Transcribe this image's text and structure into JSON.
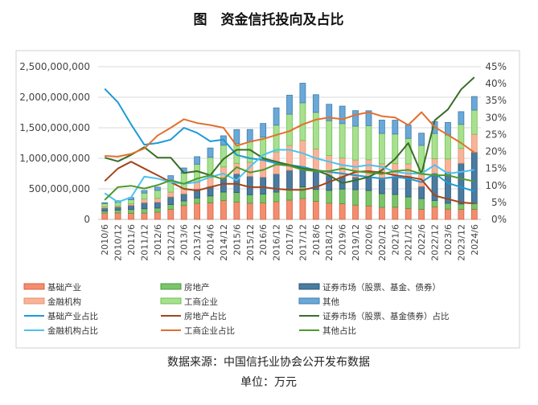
{
  "chart_data": {
    "type": "bar+line",
    "title": "图　资金信托投向及占比",
    "source": "数据来源：中国信托业协会公开发布数据",
    "unit": "单位：万元",
    "categories": [
      "2010/6",
      "2010/12",
      "2011/6",
      "2011/12",
      "2012/6",
      "2012/12",
      "2013/6",
      "2013/12",
      "2014/6",
      "2014/12",
      "2015/6",
      "2015/12",
      "2016/6",
      "2016/12",
      "2017/6",
      "2017/12",
      "2018/6",
      "2018/12",
      "2019/6",
      "2019/12",
      "2020/6",
      "2020/12",
      "2021/6",
      "2021/12",
      "2022/6",
      "2022/12",
      "2023/6",
      "2023/12",
      "2024/6"
    ],
    "left_axis": {
      "ylim": [
        0,
        2500000000
      ],
      "ticks": [
        "0",
        "500,000,000",
        "1,000,000,000",
        "1,500,000,000",
        "2,000,000,000",
        "2,500,000,000"
      ],
      "tick_values": [
        0,
        500000000,
        1000000000,
        1500000000,
        2000000000,
        2500000000
      ]
    },
    "right_axis": {
      "ylim": [
        0,
        45
      ],
      "ticks": [
        "0%",
        "5%",
        "10%",
        "15%",
        "20%",
        "25%",
        "30%",
        "35%",
        "40%",
        "45%"
      ],
      "tick_values": [
        0,
        5,
        10,
        15,
        20,
        25,
        30,
        35,
        40,
        45
      ]
    },
    "grid": true,
    "legend_position": "bottom",
    "bar_series": [
      {
        "name": "基础产业",
        "color": "#F28E6F",
        "border": "#D9603C",
        "values": [
          105000000.0,
          106000000.0,
          101000000.0,
          103000000.0,
          118000000.0,
          165000000.0,
          227000000.0,
          263000000.0,
          272000000.0,
          309000000.0,
          283000000.0,
          264000000.0,
          269000000.0,
          289000000.0,
          316000000.0,
          341000000.0,
          296000000.0,
          266000000.0,
          258000000.0,
          234000000.0,
          221000000.0,
          196000000.0,
          200000000.0,
          180000000.0,
          164000000.0,
          204000000.0,
          169000000.0,
          165000000.0,
          166000000.0
        ]
      },
      {
        "name": "房地产",
        "color": "#7CC46A",
        "border": "#4E9A3C",
        "values": [
          31000000.0,
          46000000.0,
          61000000.0,
          71000000.0,
          68000000.0,
          77000000.0,
          76000000.0,
          88000000.0,
          112000000.0,
          138000000.0,
          157000000.0,
          140000000.0,
          146000000.0,
          158000000.0,
          172000000.0,
          192000000.0,
          194000000.0,
          209000000.0,
          239000000.0,
          252000000.0,
          251000000.0,
          225000000.0,
          208000000.0,
          188000000.0,
          176000000.0,
          106000000.0,
          95000000.0,
          87000000.0,
          94000000.0
        ]
      },
      {
        "name": "证券市场（股票、基金、债券）",
        "color": "#4A7BA0",
        "border": "#2D5575",
        "values": [
          50000000.0,
          52000000.0,
          68000000.0,
          100000000.0,
          96000000.0,
          127000000.0,
          115000000.0,
          146000000.0,
          154000000.0,
          234000000.0,
          306000000.0,
          301000000.0,
          276000000.0,
          298000000.0,
          316000000.0,
          330000000.0,
          296000000.0,
          247000000.0,
          204000000.0,
          207000000.0,
          221000000.0,
          237000000.0,
          285000000.0,
          338000000.0,
          200000000.0,
          442000000.0,
          512000000.0,
          667000000.0,
          840000000.0
        ]
      },
      {
        "name": "金融机构",
        "color": "#F7B49A",
        "border": "#E8906E",
        "values": [
          21000000.0,
          16000000.0,
          23000000.0,
          59000000.0,
          63000000.0,
          77000000.0,
          88000000.0,
          113000000.0,
          148000000.0,
          178000000.0,
          171000000.0,
          228000000.0,
          292000000.0,
          360000000.0,
          405000000.0,
          429000000.0,
          367000000.0,
          323000000.0,
          305000000.0,
          279000000.0,
          283000000.0,
          253000000.0,
          224000000.0,
          203000000.0,
          201000000.0,
          242000000.0,
          213000000.0,
          244000000.0,
          293000000.0
        ]
      },
      {
        "name": "工商企业",
        "color": "#A8E090",
        "border": "#6CC04E",
        "values": [
          51000000.0,
          57000000.0,
          69000000.0,
          98000000.0,
          130000000.0,
          189000000.0,
          248000000.0,
          293000000.0,
          329000000.0,
          355000000.0,
          324000000.0,
          336000000.0,
          364000000.0,
          437000000.0,
          513000000.0,
          617000000.0,
          599000000.0,
          570000000.0,
          563000000.0,
          554000000.0,
          559000000.0,
          496000000.0,
          480000000.0,
          417000000.0,
          471000000.0,
          412000000.0,
          393000000.0,
          392000000.0,
          395000000.0
        ]
      },
      {
        "name": "其他",
        "color": "#6AA8D8",
        "border": "#3F7EAE",
        "values": [
          16000000.0,
          29000000.0,
          36000000.0,
          43000000.0,
          53000000.0,
          81000000.0,
          88000000.0,
          124000000.0,
          154000000.0,
          155000000.0,
          230000000.0,
          203000000.0,
          224000000.0,
          284000000.0,
          312000000.0,
          321000000.0,
          290000000.0,
          270000000.0,
          286000000.0,
          255000000.0,
          244000000.0,
          219000000.0,
          227000000.0,
          219000000.0,
          200000000.0,
          197000000.0,
          205000000.0,
          209000000.0,
          224000000.0
        ]
      }
    ],
    "line_series": [
      {
        "name": "基础产业占比",
        "color": "#1E9AD6",
        "values": [
          38.5,
          34.5,
          28,
          22,
          22.5,
          23.5,
          27,
          25.5,
          23,
          23.5,
          19,
          18,
          17.5,
          16.5,
          16,
          15.5,
          14.5,
          14,
          13.5,
          13,
          12.5,
          12,
          12.5,
          12,
          11,
          13.5,
          10.7,
          9.5,
          8.3
        ]
      },
      {
        "name": "房地产占比",
        "color": "#A3451C",
        "values": [
          11.3,
          15,
          17,
          15,
          13,
          11,
          9,
          8.5,
          9.5,
          10.5,
          10.5,
          9.5,
          9.5,
          9,
          8.7,
          8.7,
          9.5,
          11,
          12.5,
          14,
          14.2,
          13.8,
          13,
          12.5,
          11.8,
          7,
          6,
          5,
          4.7
        ]
      },
      {
        "name": "证券市场（股票、基金债券）占比",
        "color": "#3A6E28",
        "values": [
          18.2,
          17.1,
          19,
          21.3,
          18.2,
          18.2,
          13.7,
          14.2,
          13,
          17.8,
          20.5,
          20.5,
          18,
          17,
          16,
          15,
          14.5,
          13,
          10.7,
          11.5,
          12.5,
          14.5,
          17.8,
          22.5,
          13.4,
          29.2,
          32.4,
          38.3,
          41.9
        ]
      },
      {
        "name": "金融机构占比",
        "color": "#4CC3F0",
        "values": [
          7.7,
          5.1,
          6.5,
          12.6,
          12,
          11,
          10.5,
          11,
          12.5,
          13.5,
          11.5,
          15.5,
          19,
          20.5,
          20.5,
          19.5,
          18,
          17,
          16,
          15.5,
          16,
          15.5,
          14,
          13.5,
          13.5,
          16,
          13.5,
          14,
          14.6
        ]
      },
      {
        "name": "工商企业占比",
        "color": "#E2702E",
        "values": [
          18.7,
          18.5,
          19.3,
          20.9,
          24.7,
          27,
          29.5,
          28.4,
          27.8,
          27,
          21.7,
          22.9,
          23.7,
          24.9,
          26,
          28,
          29.4,
          30,
          29.5,
          30.8,
          31.6,
          30.4,
          30,
          27.8,
          31.6,
          27.2,
          24.9,
          22.5,
          19.7
        ]
      },
      {
        "name": "其他占比",
        "color": "#4E9A2E",
        "values": [
          5.7,
          9.5,
          9.9,
          9.1,
          10.1,
          11.5,
          10.5,
          12,
          13,
          11.8,
          15.4,
          13.8,
          14.6,
          16.2,
          15.8,
          14.6,
          14.2,
          14.2,
          15,
          14.2,
          13.8,
          13.4,
          14.2,
          14.6,
          13.4,
          13,
          13,
          12,
          11.2
        ]
      }
    ],
    "legend_order": [
      "基础产业",
      "房地产",
      "证券市场（股票、基金、债券）",
      "金融机构",
      "工商企业",
      "其他",
      "基础产业占比",
      "房地产占比",
      "证券市场（股票、基金债券）占比",
      "金融机构占比",
      "工商企业占比",
      "其他占比"
    ]
  }
}
